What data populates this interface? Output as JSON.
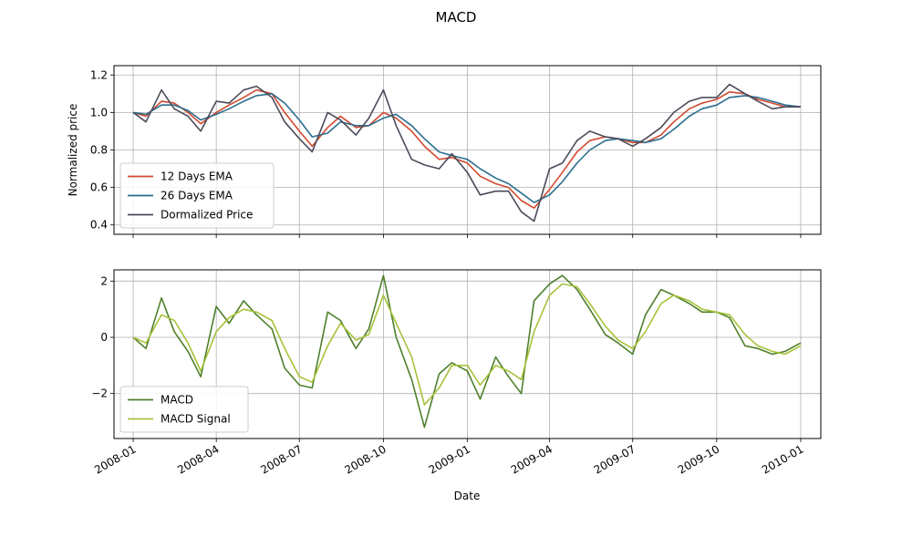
{
  "title": "MACD",
  "chart_data": [
    {
      "type": "line",
      "title": "",
      "xlabel": "",
      "ylabel": "Normalized price",
      "ylim": [
        0.35,
        1.25
      ],
      "yticks": [
        "0.4",
        "0.6",
        "0.8",
        "1.0",
        "1.2"
      ],
      "xlim": [
        "2007-12-11",
        "2010-01-23"
      ],
      "grid": true,
      "legend_position": "lower-left",
      "x": [
        "2008-01-01",
        "2008-01-15",
        "2008-02-01",
        "2008-02-15",
        "2008-03-01",
        "2008-03-15",
        "2008-04-01",
        "2008-04-15",
        "2008-05-01",
        "2008-05-15",
        "2008-06-01",
        "2008-06-15",
        "2008-07-01",
        "2008-07-15",
        "2008-08-01",
        "2008-08-15",
        "2008-09-01",
        "2008-09-15",
        "2008-10-01",
        "2008-10-15",
        "2008-11-01",
        "2008-11-15",
        "2008-12-01",
        "2008-12-15",
        "2009-01-01",
        "2009-01-15",
        "2009-02-01",
        "2009-02-15",
        "2009-03-01",
        "2009-03-15",
        "2009-04-01",
        "2009-04-15",
        "2009-05-01",
        "2009-05-15",
        "2009-06-01",
        "2009-06-15",
        "2009-07-01",
        "2009-07-15",
        "2009-08-01",
        "2009-08-15",
        "2009-09-01",
        "2009-09-15",
        "2009-10-01",
        "2009-10-15",
        "2009-11-01",
        "2009-11-15",
        "2009-12-01",
        "2009-12-15",
        "2010-01-01"
      ],
      "series": [
        {
          "name": "12 Days EMA",
          "color": "#d1492e",
          "values": [
            1.0,
            0.98,
            1.06,
            1.05,
            1.0,
            0.94,
            1.0,
            1.04,
            1.08,
            1.12,
            1.1,
            1.0,
            0.9,
            0.82,
            0.92,
            0.98,
            0.92,
            0.93,
            1.0,
            0.97,
            0.9,
            0.82,
            0.75,
            0.76,
            0.73,
            0.66,
            0.62,
            0.6,
            0.53,
            0.49,
            0.59,
            0.68,
            0.79,
            0.85,
            0.87,
            0.86,
            0.84,
            0.84,
            0.88,
            0.95,
            1.02,
            1.05,
            1.07,
            1.11,
            1.1,
            1.07,
            1.05,
            1.03,
            1.03
          ]
        },
        {
          "name": "26 Days EMA",
          "color": "#2b6e8f",
          "values": [
            1.0,
            0.99,
            1.04,
            1.04,
            1.01,
            0.96,
            0.99,
            1.02,
            1.06,
            1.09,
            1.1,
            1.05,
            0.96,
            0.87,
            0.89,
            0.95,
            0.93,
            0.93,
            0.97,
            0.99,
            0.93,
            0.86,
            0.79,
            0.77,
            0.75,
            0.7,
            0.65,
            0.62,
            0.57,
            0.52,
            0.56,
            0.63,
            0.73,
            0.8,
            0.85,
            0.86,
            0.85,
            0.84,
            0.86,
            0.91,
            0.98,
            1.02,
            1.04,
            1.08,
            1.09,
            1.08,
            1.06,
            1.04,
            1.03
          ]
        },
        {
          "name": "Dormalized Price",
          "color": "#4b4b5a",
          "values": [
            1.0,
            0.95,
            1.12,
            1.02,
            0.98,
            0.9,
            1.06,
            1.05,
            1.12,
            1.14,
            1.08,
            0.95,
            0.86,
            0.79,
            1.0,
            0.96,
            0.88,
            0.97,
            1.12,
            0.93,
            0.75,
            0.72,
            0.7,
            0.78,
            0.68,
            0.56,
            0.58,
            0.58,
            0.47,
            0.42,
            0.7,
            0.73,
            0.85,
            0.9,
            0.87,
            0.86,
            0.82,
            0.86,
            0.92,
            1.0,
            1.06,
            1.08,
            1.08,
            1.15,
            1.1,
            1.06,
            1.02,
            1.03,
            1.03
          ]
        }
      ]
    },
    {
      "type": "line",
      "title": "",
      "xlabel": "Date",
      "ylabel": "",
      "ylim": [
        -3.6,
        2.4
      ],
      "yticks": [
        "−2",
        "0",
        "2"
      ],
      "xlim": [
        "2007-12-11",
        "2010-01-23"
      ],
      "xticks": [
        "2008-01",
        "2008-04",
        "2008-07",
        "2008-10",
        "2009-01",
        "2009-04",
        "2009-07",
        "2009-10",
        "2010-01"
      ],
      "grid": true,
      "legend_position": "lower-left",
      "x": [
        "2008-01-01",
        "2008-01-15",
        "2008-02-01",
        "2008-02-15",
        "2008-03-01",
        "2008-03-15",
        "2008-04-01",
        "2008-04-15",
        "2008-05-01",
        "2008-05-15",
        "2008-06-01",
        "2008-06-15",
        "2008-07-01",
        "2008-07-15",
        "2008-08-01",
        "2008-08-15",
        "2008-09-01",
        "2008-09-15",
        "2008-10-01",
        "2008-10-15",
        "2008-11-01",
        "2008-11-15",
        "2008-12-01",
        "2008-12-15",
        "2009-01-01",
        "2009-01-15",
        "2009-02-01",
        "2009-02-15",
        "2009-03-01",
        "2009-03-15",
        "2009-04-01",
        "2009-04-15",
        "2009-05-01",
        "2009-05-15",
        "2009-06-01",
        "2009-06-15",
        "2009-07-01",
        "2009-07-15",
        "2009-08-01",
        "2009-08-15",
        "2009-09-01",
        "2009-09-15",
        "2009-10-01",
        "2009-10-15",
        "2009-11-01",
        "2009-11-15",
        "2009-12-01",
        "2009-12-15",
        "2010-01-01"
      ],
      "series": [
        {
          "name": "MACD",
          "color": "#4f7f2b",
          "values": [
            0.0,
            -0.4,
            1.4,
            0.2,
            -0.5,
            -1.4,
            1.1,
            0.5,
            1.3,
            0.8,
            0.3,
            -1.1,
            -1.7,
            -1.8,
            0.9,
            0.6,
            -0.4,
            0.3,
            2.2,
            0.0,
            -1.5,
            -3.2,
            -1.3,
            -0.9,
            -1.2,
            -2.2,
            -0.7,
            -1.4,
            -2.0,
            1.3,
            1.9,
            2.2,
            1.7,
            1.0,
            0.1,
            -0.2,
            -0.6,
            0.8,
            1.7,
            1.5,
            1.2,
            0.9,
            0.9,
            0.7,
            -0.3,
            -0.4,
            -0.6,
            -0.5,
            -0.2
          ]
        },
        {
          "name": "MACD Signal",
          "color": "#a7c23a",
          "values": [
            0.0,
            -0.2,
            0.8,
            0.6,
            -0.2,
            -1.2,
            0.2,
            0.7,
            1.0,
            0.9,
            0.6,
            -0.4,
            -1.4,
            -1.6,
            -0.3,
            0.5,
            -0.1,
            0.1,
            1.5,
            0.5,
            -0.7,
            -2.4,
            -1.8,
            -1.0,
            -1.0,
            -1.7,
            -1.0,
            -1.2,
            -1.5,
            0.2,
            1.5,
            1.9,
            1.8,
            1.2,
            0.4,
            -0.1,
            -0.4,
            0.2,
            1.2,
            1.5,
            1.3,
            1.0,
            0.9,
            0.8,
            0.1,
            -0.3,
            -0.5,
            -0.6,
            -0.3
          ]
        }
      ]
    }
  ]
}
